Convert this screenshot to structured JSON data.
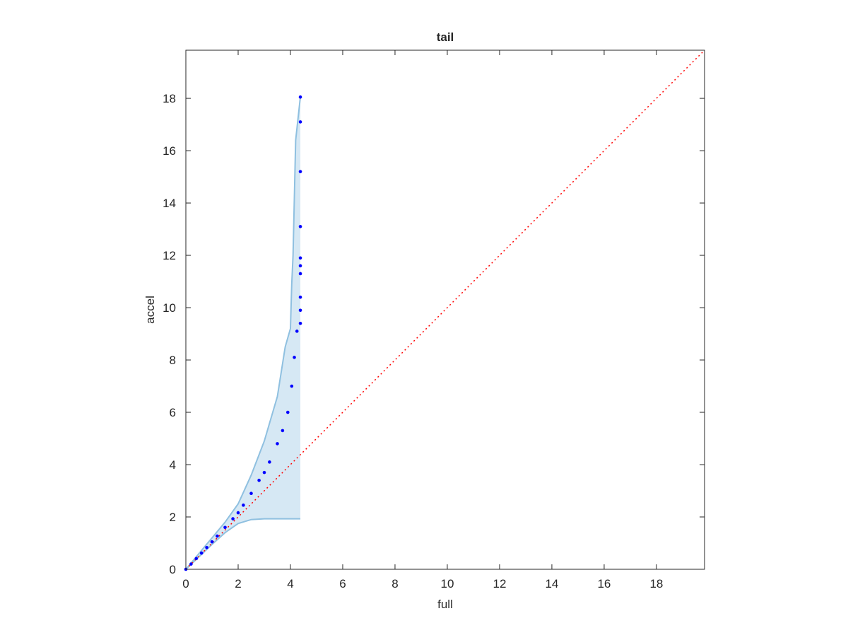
{
  "chart_data": {
    "type": "scatter",
    "title": "tail",
    "xlabel": "full",
    "ylabel": "accel",
    "xlim": [
      0,
      19.84
    ],
    "ylim": [
      0,
      19.84
    ],
    "xticks": [
      0,
      2,
      4,
      6,
      8,
      10,
      12,
      14,
      16,
      18
    ],
    "yticks": [
      0,
      2,
      4,
      6,
      8,
      10,
      12,
      14,
      16,
      18
    ],
    "series": [
      {
        "color": "#0000ff",
        "x": [
          0,
          0.2,
          0.4,
          0.6,
          0.8,
          1.0,
          1.2,
          1.5,
          1.8,
          2.0,
          2.2,
          2.5,
          2.8,
          3.0,
          3.2,
          3.5,
          3.7,
          3.9,
          4.05,
          4.15,
          4.25,
          4.38,
          4.38,
          4.38,
          4.38,
          4.38,
          4.38,
          4.38,
          4.38,
          4.38,
          4.38
        ],
        "y": [
          0,
          0.2,
          0.41,
          0.62,
          0.83,
          1.05,
          1.27,
          1.6,
          1.93,
          2.16,
          2.45,
          2.9,
          3.4,
          3.7,
          4.1,
          4.8,
          5.3,
          6.0,
          7.0,
          8.1,
          9.1,
          9.4,
          9.9,
          10.4,
          11.3,
          11.6,
          11.9,
          13.1,
          15.2,
          17.1,
          18.05
        ]
      }
    ],
    "band": {
      "color": "#8fc0e0",
      "fill": "#d6e8f4",
      "upper": {
        "x": [
          0,
          1.0,
          1.5,
          2.0,
          2.5,
          3.0,
          3.5,
          3.8,
          4.0,
          4.05,
          4.1,
          4.2,
          4.38,
          4.38
        ],
        "y": [
          0,
          1.2,
          1.8,
          2.5,
          3.6,
          4.9,
          6.6,
          8.5,
          9.2,
          10.9,
          12.0,
          16.4,
          18.05,
          18.05
        ]
      },
      "lower": {
        "x": [
          0,
          1.0,
          1.5,
          2.0,
          2.5,
          3.0,
          4.38
        ],
        "y": [
          0,
          0.95,
          1.4,
          1.75,
          1.9,
          1.93,
          1.93
        ]
      }
    },
    "reference": {
      "color": "#ff0000",
      "x": [
        0,
        19.84
      ],
      "y": [
        0,
        19.84
      ]
    }
  }
}
